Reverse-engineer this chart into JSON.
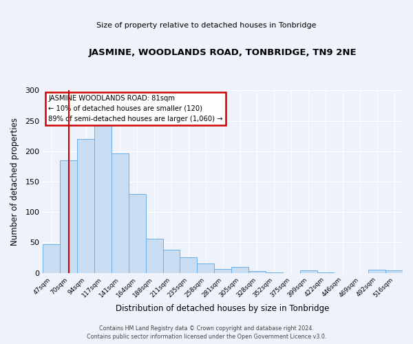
{
  "title": "JASMINE, WOODLANDS ROAD, TONBRIDGE, TN9 2NE",
  "subtitle": "Size of property relative to detached houses in Tonbridge",
  "xlabel": "Distribution of detached houses by size in Tonbridge",
  "ylabel": "Number of detached properties",
  "bar_labels": [
    "47sqm",
    "70sqm",
    "94sqm",
    "117sqm",
    "141sqm",
    "164sqm",
    "188sqm",
    "211sqm",
    "235sqm",
    "258sqm",
    "281sqm",
    "305sqm",
    "328sqm",
    "352sqm",
    "375sqm",
    "399sqm",
    "422sqm",
    "446sqm",
    "469sqm",
    "492sqm",
    "516sqm"
  ],
  "bar_values": [
    47,
    185,
    220,
    250,
    196,
    130,
    56,
    38,
    26,
    15,
    7,
    10,
    3,
    1,
    0,
    4,
    1,
    0,
    0,
    5,
    4
  ],
  "bar_color": "#c9ddf2",
  "bar_edge_color": "#6aaee8",
  "ylim": [
    0,
    300
  ],
  "yticks": [
    0,
    50,
    100,
    150,
    200,
    250,
    300
  ],
  "annotation_line1": "JASMINE WOODLANDS ROAD: 81sqm",
  "annotation_line2": "← 10% of detached houses are smaller (120)",
  "annotation_line3": "89% of semi-detached houses are larger (1,060) →",
  "annotation_box_color": "#ffffff",
  "annotation_box_edge_color": "#cc0000",
  "vline_color": "#cc0000",
  "vline_x_index": 1,
  "background_color": "#eef2fa",
  "grid_color": "#ffffff",
  "footer_line1": "Contains HM Land Registry data © Crown copyright and database right 2024.",
  "footer_line2": "Contains public sector information licensed under the Open Government Licence v3.0."
}
